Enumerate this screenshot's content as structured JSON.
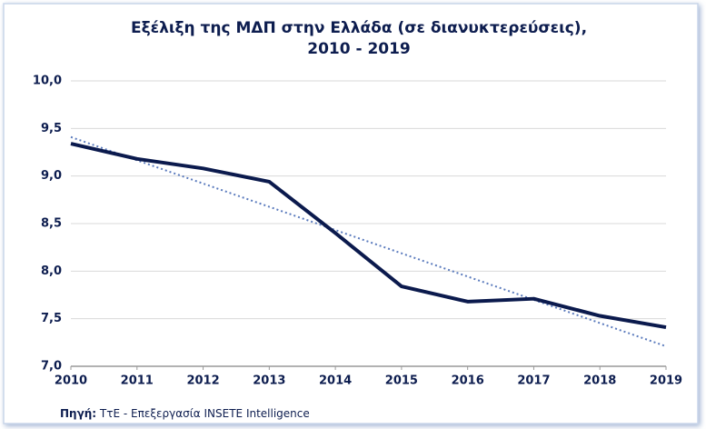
{
  "chart_data": {
    "type": "line",
    "title": [
      "Εξέλιξη της ΜΔΠ στην Ελλάδα (σε διανυκτερεύσεις),",
      "2010 - 2019"
    ],
    "x": [
      2010,
      2011,
      2012,
      2013,
      2014,
      2015,
      2016,
      2017,
      2018,
      2019
    ],
    "xlim": [
      2010,
      2019
    ],
    "xticks": [
      2010,
      2011,
      2012,
      2013,
      2014,
      2015,
      2016,
      2017,
      2018,
      2019
    ],
    "series": [
      {
        "color": "#0b1a4d",
        "values": [
          9.34,
          9.18,
          9.08,
          8.94,
          8.4,
          7.84,
          7.68,
          7.71,
          7.53,
          7.41
        ]
      }
    ],
    "trendline": {
      "color": "#5b7bbd",
      "x": [
        2010,
        2019
      ],
      "values": [
        9.41,
        7.21
      ]
    },
    "ylim": [
      7,
      10
    ],
    "yticks": [
      {
        "value": 7,
        "label": "7,0"
      },
      {
        "value": 7.5,
        "label": "7,5"
      },
      {
        "value": 8,
        "label": "8,0"
      },
      {
        "value": 8.5,
        "label": "8,5"
      },
      {
        "value": 9,
        "label": "9,0"
      },
      {
        "value": 9.5,
        "label": "9,5"
      },
      {
        "value": 10,
        "label": "10,0"
      }
    ],
    "grid": true,
    "source_label": "Πηγή:",
    "source_text": " ΤτΕ - Επεξεργασία INSETE Intelligence"
  }
}
